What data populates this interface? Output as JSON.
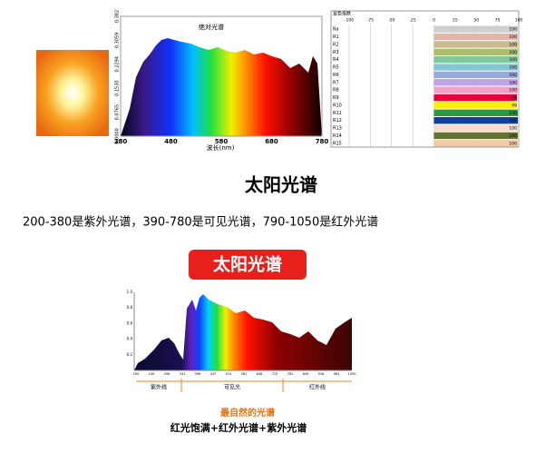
{
  "spectrum_top": {
    "title": "绝对光谱",
    "yticks": [
      "0.0000",
      "0.0765",
      "0.1530",
      "0.2294",
      "0.3059",
      "0.382"
    ],
    "xticks": [
      "380",
      "480",
      "580",
      "680",
      "780"
    ],
    "xlabel": "波长(nm)"
  },
  "cri_table": {
    "title": "显色指数",
    "axis": [
      "-100",
      "-75",
      "-50",
      "-25",
      "0",
      "25",
      "50",
      "75",
      "100"
    ],
    "rows": [
      {
        "name": "Ra",
        "value": 100
      },
      {
        "name": "R1",
        "value": 100
      },
      {
        "name": "R2",
        "value": 100
      },
      {
        "name": "R3",
        "value": 100
      },
      {
        "name": "R4",
        "value": 100
      },
      {
        "name": "R5",
        "value": 100
      },
      {
        "name": "R6",
        "value": 100
      },
      {
        "name": "R7",
        "value": 100
      },
      {
        "name": "R8",
        "value": 100
      },
      {
        "name": "R9",
        "value": 99
      },
      {
        "name": "R10",
        "value": 99
      },
      {
        "name": "R11",
        "value": 100
      },
      {
        "name": "R12",
        "value": 100
      },
      {
        "name": "R13",
        "value": 100
      },
      {
        "name": "R14",
        "value": 100
      },
      {
        "name": "R15",
        "value": 100
      }
    ]
  },
  "heading": "太阳光谱",
  "description": "200-380是紫外光谱，390-780是可见光谱，790-1050是红外光谱",
  "badge": "太阳光谱",
  "spectrum_bottom": {
    "yticks": [
      "0.2",
      "0.4",
      "0.6",
      "0.8",
      "1.0"
    ],
    "xticks": [
      "200",
      "249",
      "298",
      "347",
      "396",
      "447",
      "514",
      "581",
      "648",
      "715",
      "782",
      "849",
      "916",
      "983",
      "1050"
    ],
    "bands": [
      "紫外线",
      "可见光",
      "红外线"
    ]
  },
  "caption": {
    "title": "最自然的光谱",
    "subtitle": "红光饱满+红外光谱+紫外光谱"
  }
}
